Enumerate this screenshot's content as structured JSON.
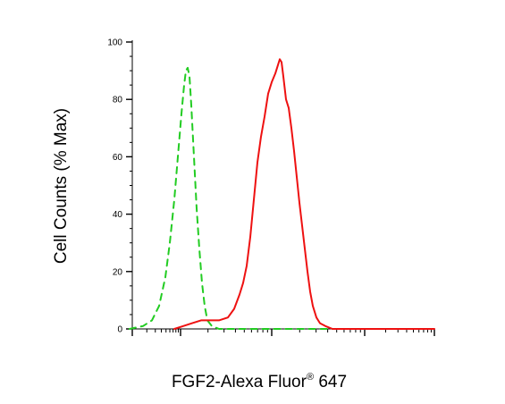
{
  "chart_data": {
    "type": "line",
    "title": "",
    "xlabel_main": "FGF2-Alexa Fluor",
    "xlabel_sup": "®",
    "xlabel_tail": " 647",
    "ylabel": "Cell Counts (% Max)",
    "x_scale": "log",
    "x_tick_labels": [],
    "ylim": [
      0,
      100
    ],
    "y_ticks": [
      {
        "value": 0,
        "label": "0"
      },
      {
        "value": 20,
        "label": "20"
      },
      {
        "value": 40,
        "label": "40"
      },
      {
        "value": 60,
        "label": "60"
      },
      {
        "value": 80,
        "label": "80"
      },
      {
        "value": 100,
        "label": "100"
      }
    ],
    "grid": false,
    "legend": "none",
    "series": [
      {
        "color": "#22cc22",
        "style": "dashed",
        "points": [
          [
            145,
            0
          ],
          [
            160,
            1
          ],
          [
            170,
            3
          ],
          [
            178,
            8
          ],
          [
            185,
            18
          ],
          [
            190,
            30
          ],
          [
            195,
            45
          ],
          [
            199,
            60
          ],
          [
            203,
            75
          ],
          [
            206,
            85
          ],
          [
            208,
            90
          ],
          [
            210,
            91
          ],
          [
            212,
            88
          ],
          [
            214,
            78
          ],
          [
            217,
            60
          ],
          [
            220,
            42
          ],
          [
            223,
            28
          ],
          [
            226,
            16
          ],
          [
            229,
            8
          ],
          [
            232,
            3
          ],
          [
            237,
            1
          ],
          [
            245,
            0
          ],
          [
            280,
            0
          ],
          [
            340,
            0
          ],
          [
            380,
            0
          ],
          [
            420,
            0
          ],
          [
            486,
            0
          ]
        ]
      },
      {
        "color": "#ee1111",
        "style": "solid",
        "points": [
          [
            195,
            0
          ],
          [
            205,
            1
          ],
          [
            215,
            2
          ],
          [
            225,
            3
          ],
          [
            235,
            3
          ],
          [
            245,
            3
          ],
          [
            255,
            4
          ],
          [
            262,
            7
          ],
          [
            268,
            12
          ],
          [
            272,
            16
          ],
          [
            276,
            22
          ],
          [
            280,
            32
          ],
          [
            284,
            45
          ],
          [
            288,
            58
          ],
          [
            292,
            67
          ],
          [
            296,
            74
          ],
          [
            300,
            82
          ],
          [
            304,
            86
          ],
          [
            308,
            89
          ],
          [
            311,
            92
          ],
          [
            313,
            94
          ],
          [
            315,
            93
          ],
          [
            317,
            88
          ],
          [
            320,
            80
          ],
          [
            323,
            77
          ],
          [
            326,
            70
          ],
          [
            329,
            62
          ],
          [
            332,
            53
          ],
          [
            335,
            44
          ],
          [
            338,
            36
          ],
          [
            341,
            28
          ],
          [
            344,
            20
          ],
          [
            347,
            13
          ],
          [
            350,
            8
          ],
          [
            354,
            4
          ],
          [
            358,
            2
          ],
          [
            364,
            1
          ],
          [
            372,
            0
          ],
          [
            400,
            0
          ],
          [
            440,
            0
          ],
          [
            486,
            0
          ]
        ]
      }
    ]
  }
}
